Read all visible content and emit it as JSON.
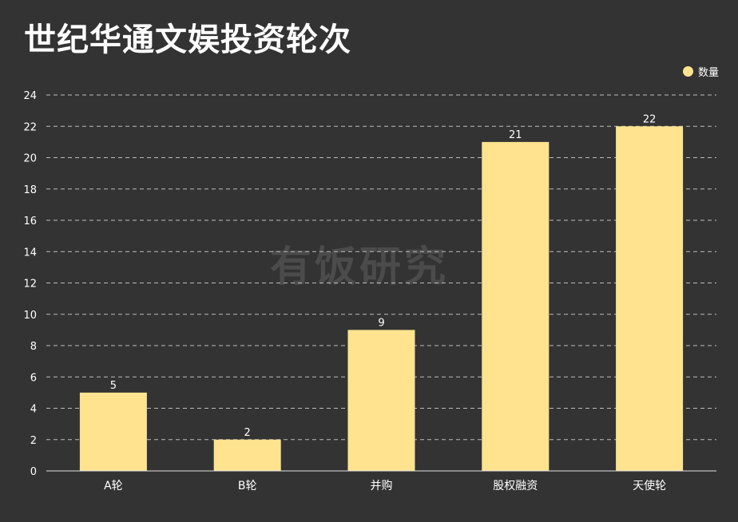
{
  "title": "世纪华通文娱投资轮次",
  "watermark": "有饭研究",
  "chart_data": {
    "type": "bar",
    "title": "世纪华通文娱投资轮次",
    "categories": [
      "A轮",
      "B轮",
      "并购",
      "股权融资",
      "天使轮"
    ],
    "series": [
      {
        "name": "数量",
        "values": [
          5,
          2,
          9,
          21,
          22
        ],
        "color": "#ffe38e"
      }
    ],
    "ylim": [
      0,
      24
    ],
    "yticks": [
      0,
      2,
      4,
      6,
      8,
      10,
      12,
      14,
      16,
      18,
      20,
      22,
      24
    ],
    "xlabel": "",
    "ylabel": "",
    "grid": true,
    "legend_position": "top-right",
    "data_labels": true
  },
  "colors": {
    "background": "#333333",
    "bar": "#ffe38e",
    "text": "#ffffff",
    "grid": "#bdbdbd"
  }
}
